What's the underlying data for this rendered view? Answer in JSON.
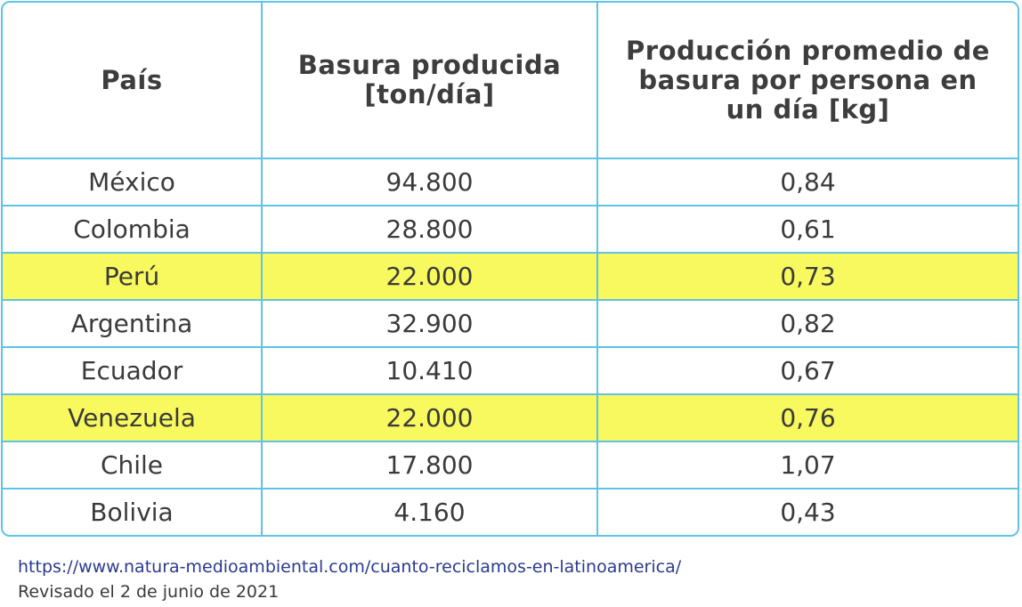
{
  "table": {
    "headers": [
      "País",
      "Basura producida [ton/día]",
      "Producción promedio de basura por persona en un día [kg]"
    ],
    "rows": [
      {
        "country": "México",
        "waste_tons": "94.800",
        "per_person_kg": "0,84",
        "highlighted": false
      },
      {
        "country": "Colombia",
        "waste_tons": "28.800",
        "per_person_kg": "0,61",
        "highlighted": false
      },
      {
        "country": "Perú",
        "waste_tons": "22.000",
        "per_person_kg": "0,73",
        "highlighted": true
      },
      {
        "country": "Argentina",
        "waste_tons": "32.900",
        "per_person_kg": "0,82",
        "highlighted": false
      },
      {
        "country": "Ecuador",
        "waste_tons": "10.410",
        "per_person_kg": "0,67",
        "highlighted": false
      },
      {
        "country": "Venezuela",
        "waste_tons": "22.000",
        "per_person_kg": "0,76",
        "highlighted": true
      },
      {
        "country": "Chile",
        "waste_tons": "17.800",
        "per_person_kg": "1,07",
        "highlighted": false
      },
      {
        "country": "Bolivia",
        "waste_tons": "4.160",
        "per_person_kg": "0,43",
        "highlighted": false
      }
    ],
    "border_color": "#5fc3e4",
    "highlight_color": "#f7f95e"
  },
  "footer": {
    "source_url": "https://www.natura-medioambiental.com/cuanto-reciclamos-en-latinoamerica/",
    "revised": "Revisado el 2 de junio de 2021"
  }
}
